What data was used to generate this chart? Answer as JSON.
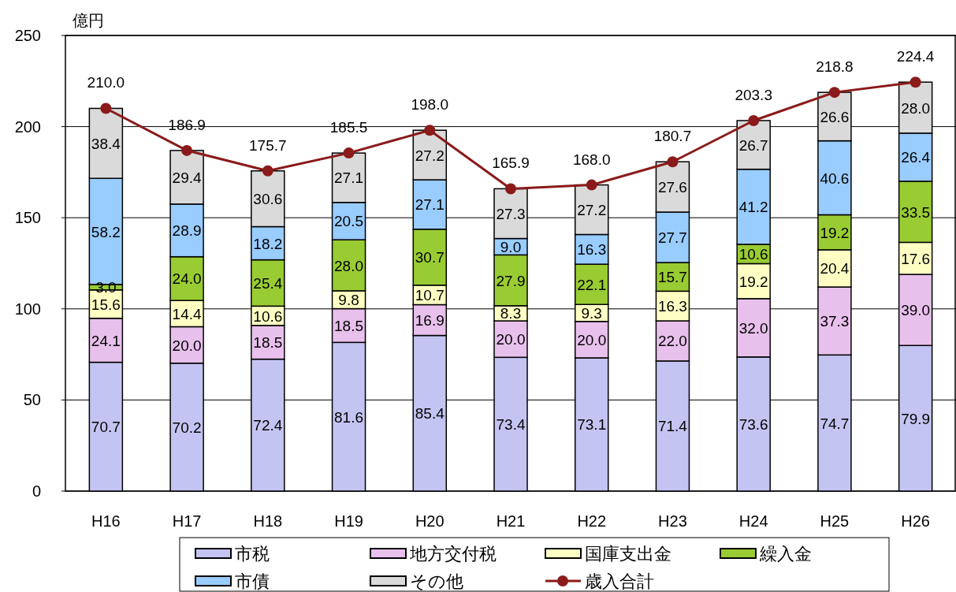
{
  "chart_data": {
    "type": "bar",
    "stacked": true,
    "ylabel": "億円",
    "categories": [
      "H16",
      "H17",
      "H18",
      "H19",
      "H20",
      "H21",
      "H22",
      "H23",
      "H24",
      "H25",
      "H26"
    ],
    "series": [
      {
        "name": "市税",
        "color": "#c4c4f2",
        "values": [
          70.7,
          70.2,
          72.4,
          81.6,
          85.4,
          73.4,
          73.1,
          71.4,
          73.6,
          74.7,
          79.9
        ],
        "value_labels": [
          "70.7",
          "70.2",
          "72.4",
          "81.6",
          "85.4",
          "73.4",
          "73.1",
          "71.4",
          "73.6",
          "74.7",
          "79.9"
        ]
      },
      {
        "name": "地方交付税",
        "color": "#e8c0ec",
        "values": [
          24.1,
          20.0,
          18.5,
          18.5,
          16.9,
          20.0,
          20.0,
          22.0,
          32.0,
          37.3,
          39.0
        ],
        "value_labels": [
          "24.1",
          "20.0",
          "18.5",
          "18.5",
          "16.9",
          "20.0",
          "20.0",
          "22.0",
          "32.0",
          "37.3",
          "39.0"
        ]
      },
      {
        "name": "国庫支出金",
        "color": "#ffffc4",
        "values": [
          15.6,
          14.4,
          10.6,
          9.8,
          10.7,
          8.3,
          9.3,
          16.3,
          19.2,
          20.4,
          17.6
        ],
        "value_labels": [
          "15.6",
          "14.4",
          "10.6",
          "9.8",
          "10.7",
          "8.3",
          "9.3",
          "16.3",
          "19.2",
          "20.4",
          "17.6"
        ]
      },
      {
        "name": "繰入金",
        "color": "#99cc33",
        "values": [
          3.0,
          24.0,
          25.4,
          28.0,
          30.7,
          27.9,
          22.1,
          15.7,
          10.6,
          19.2,
          33.5
        ],
        "value_labels": [
          "3.0",
          "24.0",
          "25.4",
          "28.0",
          "30.7",
          "27.9",
          "22.1",
          "15.7",
          "10.6",
          "19.2",
          "33.5"
        ]
      },
      {
        "name": "市債",
        "color": "#99ccff",
        "values": [
          58.2,
          28.9,
          18.2,
          20.5,
          27.1,
          9.0,
          16.3,
          27.7,
          41.2,
          40.6,
          26.4
        ],
        "value_labels": [
          "58.2",
          "28.9",
          "18.2",
          "20.5",
          "27.1",
          "9.0",
          "16.3",
          "27.7",
          "41.2",
          "40.6",
          "26.4"
        ]
      },
      {
        "name": "その他",
        "color": "#dadada",
        "values": [
          38.4,
          29.4,
          30.6,
          27.1,
          27.2,
          27.3,
          27.2,
          27.6,
          26.7,
          26.6,
          28.0
        ],
        "value_labels": [
          "38.4",
          "29.4",
          "30.6",
          "27.1",
          "27.2",
          "27.3",
          "27.2",
          "27.6",
          "26.7",
          "26.6",
          "28.0"
        ]
      },
      {
        "name": "歳入合計",
        "type": "line",
        "color": "#8b1a1a",
        "values": [
          210.0,
          186.9,
          175.7,
          185.5,
          198.0,
          165.9,
          168.0,
          180.7,
          203.3,
          218.8,
          224.4
        ],
        "value_labels": [
          "210.0",
          "186.9",
          "175.7",
          "185.5",
          "198.0",
          "165.9",
          "168.0",
          "180.7",
          "203.3",
          "218.8",
          "224.4"
        ]
      }
    ],
    "ylim": [
      0,
      250
    ],
    "yticks": [
      0,
      50,
      100,
      150,
      200,
      250
    ],
    "grid": "y",
    "legend": "bottom",
    "marker": "circle"
  }
}
